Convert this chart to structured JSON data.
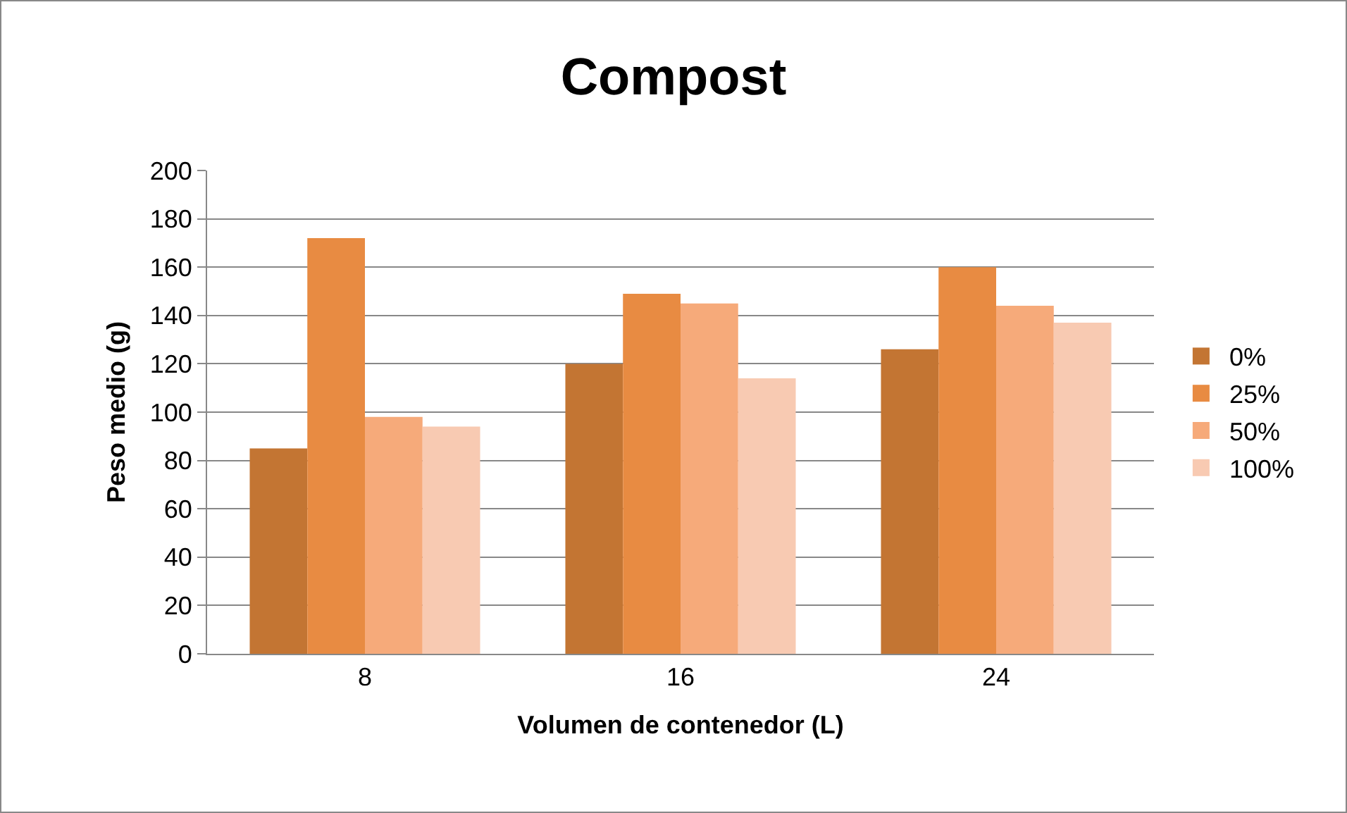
{
  "chart_data": {
    "type": "bar",
    "title": "Compost",
    "xlabel": "Volumen de contenedor (L)",
    "ylabel": "Peso medio (g)",
    "categories": [
      "8",
      "16",
      "24"
    ],
    "series": [
      {
        "name": "0%",
        "color": "#c37533",
        "values": [
          85,
          120,
          126
        ]
      },
      {
        "name": "25%",
        "color": "#e88b42",
        "values": [
          172,
          149,
          160
        ]
      },
      {
        "name": "50%",
        "color": "#f6aa7a",
        "values": [
          98,
          145,
          144
        ]
      },
      {
        "name": "100%",
        "color": "#f8cab2",
        "values": [
          94,
          114,
          137
        ]
      }
    ],
    "ylim": [
      0,
      200
    ],
    "yticks": [
      0,
      20,
      40,
      60,
      80,
      100,
      120,
      140,
      160,
      180,
      200
    ],
    "grid": "y",
    "legend": "right"
  }
}
